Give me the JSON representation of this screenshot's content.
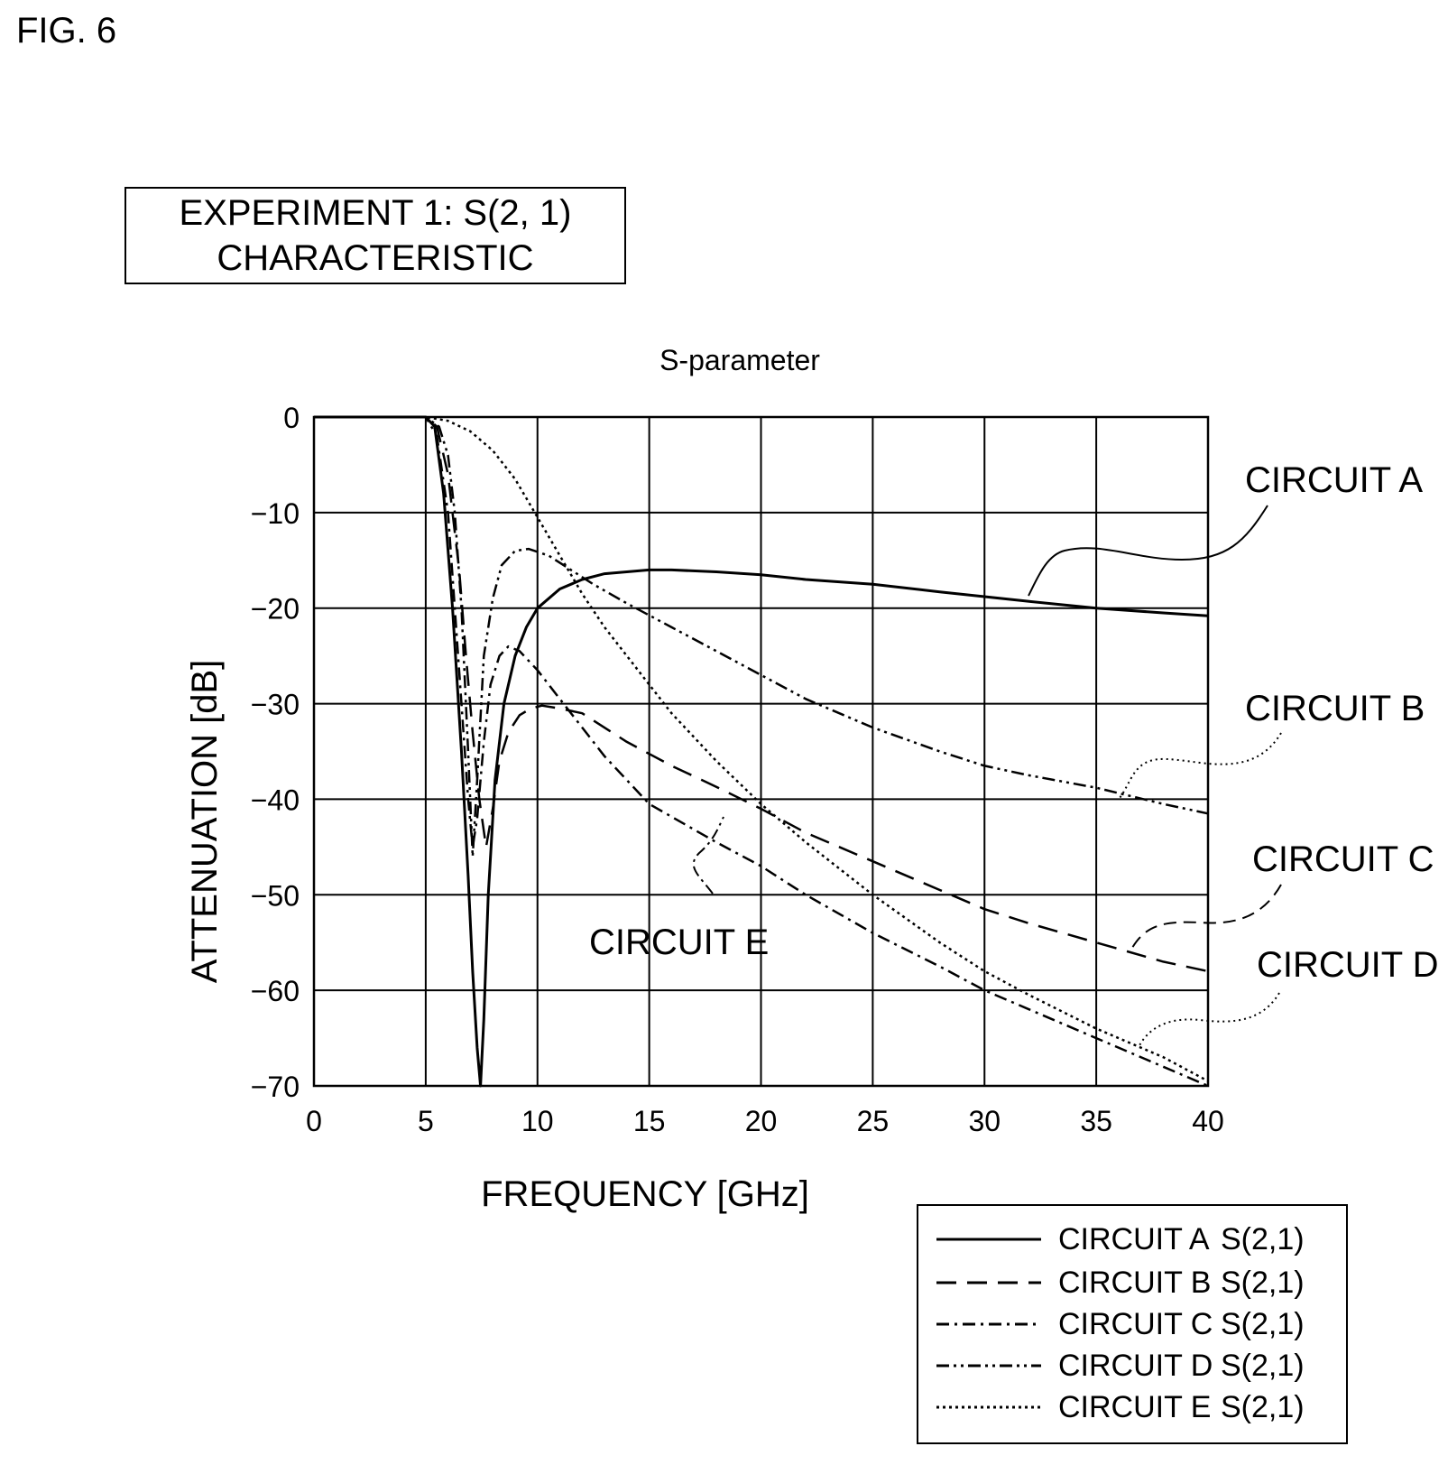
{
  "figure_label": "FIG. 6",
  "experiment_title": [
    "EXPERIMENT 1: S(2, 1)",
    "CHARACTERISTIC"
  ],
  "chart_data": {
    "type": "line",
    "title": "S-parameter",
    "xlabel": "FREQUENCY [GHz]",
    "ylabel": "ATTENUATION [dB]",
    "xlim": [
      0,
      40
    ],
    "ylim": [
      -70,
      0
    ],
    "xticks": [
      0,
      5,
      10,
      15,
      20,
      25,
      30,
      35,
      40
    ],
    "yticks": [
      0,
      -10,
      -20,
      -30,
      -40,
      -50,
      -60,
      -70
    ],
    "grid": true,
    "legend_position": "bottom-right outside",
    "series": [
      {
        "name": "CIRCUIT A S(2,1)",
        "callout": "CIRCUIT A",
        "style": "solid",
        "x": [
          0,
          5,
          5.4,
          5.8,
          6.2,
          6.6,
          6.9,
          7.1,
          7.3,
          7.45,
          7.6,
          7.8,
          8.1,
          8.5,
          9,
          9.5,
          10,
          11,
          12,
          13,
          14,
          15,
          16,
          18,
          20,
          22,
          25,
          28,
          30,
          32,
          35,
          38,
          40
        ],
        "y": [
          0,
          0,
          -1,
          -8,
          -20,
          -35,
          -48,
          -58,
          -66,
          -70,
          -63,
          -50,
          -38,
          -30,
          -25,
          -22,
          -20,
          -18,
          -17,
          -16.4,
          -16.2,
          -16,
          -16,
          -16.2,
          -16.5,
          -17,
          -17.5,
          -18.3,
          -18.8,
          -19.3,
          -20,
          -20.5,
          -20.8
        ]
      },
      {
        "name": "CIRCUIT B S(2,1)",
        "callout": "CIRCUIT B",
        "style": "dashed",
        "x": [
          0,
          5,
          5.5,
          6,
          6.5,
          6.8,
          7.1,
          7.4,
          7.7,
          8,
          8.3,
          8.7,
          9.2,
          9.7,
          10.2,
          11,
          12,
          14,
          16,
          18,
          20,
          22,
          25,
          28,
          30,
          32,
          35,
          38,
          40
        ],
        "y": [
          0,
          0,
          -1,
          -6,
          -16,
          -25,
          -33,
          -40,
          -45,
          -41,
          -36,
          -33,
          -31.2,
          -30.5,
          -30.2,
          -30.5,
          -31,
          -34,
          -36.5,
          -38.7,
          -41,
          -43.5,
          -46.5,
          -49.5,
          -51.5,
          -53,
          -55,
          -57,
          -58
        ]
      },
      {
        "name": "CIRCUIT C S(2,1)",
        "callout": "CIRCUIT C",
        "style": "dash-dot",
        "x": [
          0,
          5,
          5.5,
          6,
          6.3,
          6.6,
          6.9,
          7.1,
          7.3,
          7.6,
          7.9,
          8.3,
          8.7,
          9.2,
          10,
          11,
          12,
          13,
          15,
          18,
          20,
          22,
          25,
          28,
          30,
          32,
          35,
          38,
          40
        ],
        "y": [
          0,
          0,
          -2,
          -10,
          -20,
          -30,
          -40,
          -45,
          -42,
          -34,
          -28,
          -25,
          -24,
          -24.5,
          -26.5,
          -29.5,
          -32.5,
          -35.5,
          -40.5,
          -44.5,
          -47,
          -50,
          -54,
          -57.5,
          -60,
          -62,
          -65,
          -68,
          -70
        ]
      },
      {
        "name": "CIRCUIT D S(2,1)",
        "callout": "CIRCUIT D",
        "style": "dash-dot-dot",
        "x": [
          0,
          5,
          5.6,
          6,
          6.3,
          6.6,
          6.9,
          7.1,
          7.3,
          7.6,
          8,
          8.4,
          9,
          9.6,
          10.5,
          11.5,
          12.5,
          14,
          16,
          18,
          20,
          22,
          25,
          28,
          30,
          32,
          35,
          38,
          40
        ],
        "y": [
          0,
          0,
          -1,
          -4,
          -10,
          -20,
          -35,
          -46,
          -38,
          -25,
          -19,
          -15.5,
          -14,
          -13.8,
          -14.5,
          -16,
          -17.5,
          -19.5,
          -22,
          -24.5,
          -27,
          -29.5,
          -32.5,
          -35,
          -36.5,
          -37.5,
          -38.8,
          -40.5,
          -41.5
        ]
      },
      {
        "name": "CIRCUIT E S(2,1)",
        "callout": "CIRCUIT E",
        "style": "dotted",
        "x": [
          0,
          5,
          6,
          7,
          8,
          9,
          10,
          11,
          12,
          13,
          14,
          15,
          16,
          18,
          20,
          22,
          25,
          28,
          30,
          32,
          35,
          38,
          40
        ],
        "y": [
          0,
          0,
          -0.4,
          -1.5,
          -3.5,
          -6.5,
          -10.5,
          -14.5,
          -18.5,
          -22,
          -25,
          -28,
          -31,
          -36,
          -40.5,
          -44.5,
          -50,
          -55,
          -58,
          -60.5,
          -64,
          -67,
          -69.5
        ]
      }
    ]
  },
  "legend": {
    "items": [
      {
        "label": "CIRCUIT A",
        "param": "S(2,1)",
        "dash": ""
      },
      {
        "label": "CIRCUIT B",
        "param": "S(2,1)",
        "dash": "22,12"
      },
      {
        "label": "CIRCUIT C",
        "param": "S(2,1)",
        "dash": "14,6,3,6"
      },
      {
        "label": "CIRCUIT D",
        "param": "S(2,1)",
        "dash": "14,5,3,5,3,5"
      },
      {
        "label": "CIRCUIT E",
        "param": "S(2,1)",
        "dash": "3,4"
      }
    ]
  }
}
